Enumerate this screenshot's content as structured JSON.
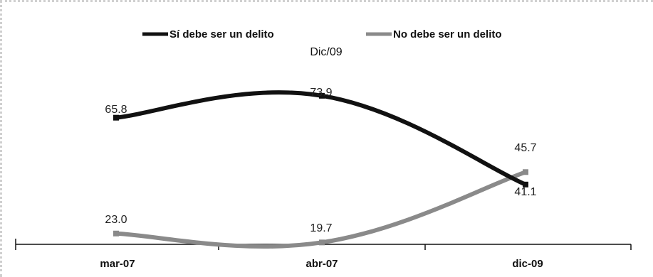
{
  "chart_data": {
    "type": "line",
    "title": "",
    "subtitle": "Dic/09",
    "xlabel": "",
    "ylabel": "",
    "categories": [
      "mar-07",
      "abr-07",
      "dic-09"
    ],
    "ylim": [
      0,
      100
    ],
    "grid": false,
    "legend_position": "top-center",
    "series": [
      {
        "name": "Sí debe ser un delito",
        "values": [
          65.8,
          73.9,
          41.1
        ],
        "labels": [
          "65.8",
          "73.9",
          "41.1"
        ],
        "color": "#111111"
      },
      {
        "name": "No debe ser un delito",
        "values": [
          23.0,
          19.7,
          45.7
        ],
        "labels": [
          "23.0",
          "19.7",
          "45.7"
        ],
        "color": "#8a8a8a"
      }
    ]
  }
}
